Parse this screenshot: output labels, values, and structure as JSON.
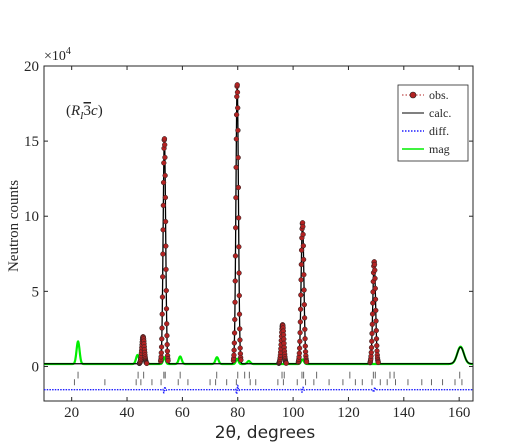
{
  "chart_data": {
    "type": "line",
    "xlabel": "2θ, degrees",
    "ylabel": "Neutron counts",
    "annotation": "(Rı̄ 3c)",
    "annotation_parts": {
      "open": "(",
      "R": "R",
      "sub": "I",
      "bar3": "3",
      "c": "c",
      "close": ")"
    },
    "y_multiplier": "×10",
    "y_multiplier_exp": "4",
    "xlim": [
      10,
      165
    ],
    "ylim": [
      -2.3,
      20
    ],
    "x_ticks": [
      20,
      40,
      60,
      80,
      100,
      120,
      140,
      160
    ],
    "y_ticks": [
      0,
      5,
      10,
      15,
      20
    ],
    "y_tick_labels": [
      "0",
      "5",
      "10",
      "15",
      "20"
    ],
    "grid": false,
    "legend_position": "top-right",
    "background_level": 0.18,
    "calc_peaks": [
      {
        "center": 45.8,
        "height": 1.8,
        "width": 0.45
      },
      {
        "center": 53.5,
        "height": 15.0,
        "width": 0.45
      },
      {
        "center": 79.8,
        "height": 18.6,
        "width": 0.45
      },
      {
        "center": 96.2,
        "height": 2.6,
        "width": 0.45
      },
      {
        "center": 103.4,
        "height": 9.4,
        "width": 0.5
      },
      {
        "center": 129.3,
        "height": 6.8,
        "width": 0.5
      },
      {
        "center": 160.5,
        "height": 1.1,
        "width": 1.2
      }
    ],
    "mag_peaks": [
      {
        "center": 22.3,
        "height": 1.5,
        "width": 0.55
      },
      {
        "center": 43.8,
        "height": 0.6,
        "width": 0.55
      },
      {
        "center": 45.8,
        "height": 0.35,
        "width": 0.45
      },
      {
        "center": 53.5,
        "height": 0.45,
        "width": 0.45
      },
      {
        "center": 59.2,
        "height": 0.5,
        "width": 0.55
      },
      {
        "center": 72.5,
        "height": 0.45,
        "width": 0.55
      },
      {
        "center": 79.8,
        "height": 0.35,
        "width": 0.45
      },
      {
        "center": 84.0,
        "height": 0.2,
        "width": 0.55
      },
      {
        "center": 103.4,
        "height": 0.3,
        "width": 0.5
      },
      {
        "center": 160.5,
        "height": 1.15,
        "width": 1.2
      }
    ],
    "diff_level": -1.55,
    "diff_spikes": [
      {
        "center": 53.5,
        "amp": 0.25
      },
      {
        "center": 79.8,
        "amp": 0.35
      },
      {
        "center": 103.4,
        "amp": 0.2
      },
      {
        "center": 129.3,
        "amp": 0.2
      }
    ],
    "reflections_row1": [
      22.3,
      44.0,
      46.0,
      53.3,
      53.8,
      59.2,
      72.4,
      80.0,
      82.5,
      84.2,
      96.0,
      96.8,
      103.2,
      103.8,
      108.5,
      120.5,
      129.0,
      129.7,
      135.0,
      136.5,
      160.2
    ],
    "reflections_row2": [
      21.0,
      32.0,
      43.3,
      45.0,
      49.0,
      52.3,
      58.5,
      62.0,
      70.0,
      72.0,
      76.0,
      79.5,
      84.5,
      86.5,
      94.5,
      96.5,
      101.5,
      104.5,
      107.5,
      113.0,
      118.0,
      122.5,
      125.0,
      128.5,
      131.5,
      134.0,
      137.0,
      141.5,
      146.5,
      150.0,
      154.0,
      158.5,
      161.0
    ]
  },
  "legend": {
    "items": [
      {
        "label": "obs.",
        "color": "#b22222",
        "style": "dotted-marker"
      },
      {
        "label": "calc.",
        "color": "#000000",
        "style": "solid"
      },
      {
        "label": "diff.",
        "color": "#1f1fff",
        "style": "dotted"
      },
      {
        "label": "mag",
        "color": "#00ee00",
        "style": "solid"
      }
    ]
  },
  "colors": {
    "obs": "#b22222",
    "calc": "#000000",
    "diff": "#1f1fff",
    "mag": "#00ee00",
    "ticks": "#666666"
  }
}
